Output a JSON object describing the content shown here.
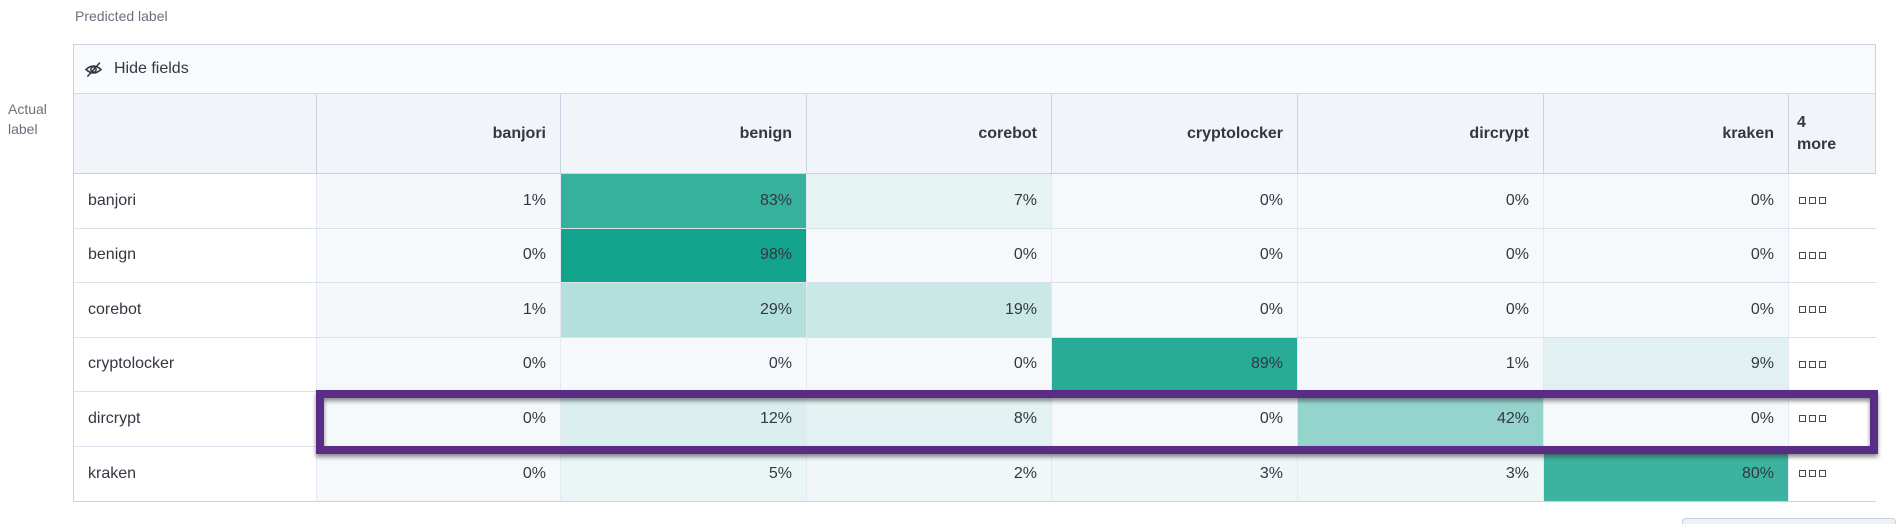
{
  "toolbar": {
    "hide_fields_label": "Hide fields"
  },
  "colors": {
    "heat_max": "#0ea28b",
    "heat_base": "#f6f9fb",
    "highlight": "#5b2c85",
    "header_bg": "#f1f4f9",
    "text": "#343741",
    "subdued_text": "#69707d"
  },
  "chart_data": {
    "type": "heatmap",
    "x_axis_label": "Predicted label",
    "y_axis_label": "Actual label",
    "columns": [
      "banjori",
      "benign",
      "corebot",
      "cryptolocker",
      "dircrypt",
      "kraken"
    ],
    "overflow_column_label": "4\nmore",
    "value_suffix": "%",
    "value_range": [
      0,
      100
    ],
    "rows": [
      {
        "label": "banjori",
        "values": [
          1,
          83,
          7,
          0,
          0,
          0
        ],
        "highlighted": false
      },
      {
        "label": "benign",
        "values": [
          0,
          98,
          0,
          0,
          0,
          0
        ],
        "highlighted": false
      },
      {
        "label": "corebot",
        "values": [
          1,
          29,
          19,
          0,
          0,
          0
        ],
        "highlighted": false
      },
      {
        "label": "cryptolocker",
        "values": [
          0,
          0,
          0,
          89,
          1,
          9
        ],
        "highlighted": false
      },
      {
        "label": "dircrypt",
        "values": [
          0,
          12,
          8,
          0,
          42,
          0
        ],
        "highlighted": true
      },
      {
        "label": "kraken",
        "values": [
          0,
          5,
          2,
          3,
          3,
          80
        ],
        "highlighted": false
      }
    ]
  }
}
